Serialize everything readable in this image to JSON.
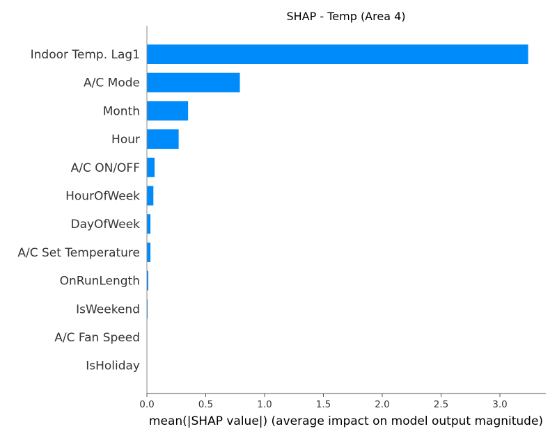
{
  "chart_data": {
    "type": "bar",
    "orientation": "horizontal",
    "title": "SHAP - Temp (Area 4)",
    "xlabel": "mean(|SHAP value|) (average impact on model output magnitude)",
    "ylabel": "",
    "xlim": [
      0,
      3.4
    ],
    "x_ticks": [
      "0.0",
      "0.5",
      "1.0",
      "1.5",
      "2.0",
      "2.5",
      "3.0"
    ],
    "grid": false,
    "bar_color": "#008bfb",
    "categories": [
      "Indoor Temp. Lag1",
      "A/C Mode",
      "Month",
      "Hour",
      "A/C ON/OFF",
      "HourOfWeek",
      "DayOfWeek",
      "A/C Set Temperature",
      "OnRunLength",
      "IsWeekend",
      "A/C Fan Speed",
      "IsHoliday"
    ],
    "values": [
      3.24,
      0.79,
      0.35,
      0.27,
      0.065,
      0.055,
      0.03,
      0.03,
      0.012,
      0.006,
      0.0,
      0.0
    ]
  }
}
